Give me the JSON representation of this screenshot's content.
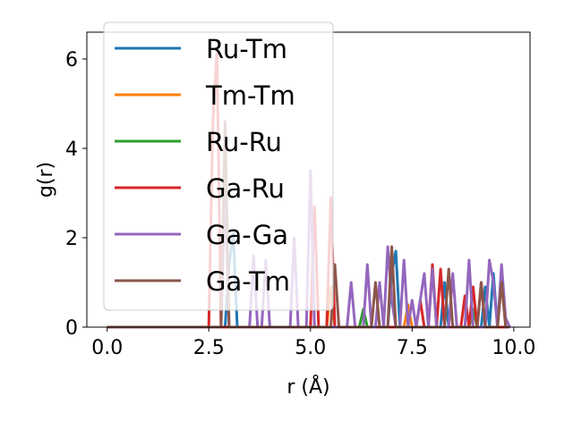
{
  "chart_data": {
    "type": "line",
    "xlabel": "r (Å)",
    "ylabel": "g(r)",
    "xlim": [
      -0.5,
      10.4
    ],
    "ylim": [
      0,
      6.6
    ],
    "xticks": [
      0.0,
      2.5,
      5.0,
      7.5,
      10.0
    ],
    "xtick_labels": [
      "0.0",
      "2.5",
      "5.0",
      "7.5",
      "10.0"
    ],
    "yticks": [
      0,
      2,
      4,
      6
    ],
    "ytick_labels": [
      "0",
      "2",
      "4",
      "6"
    ],
    "grid": false,
    "legend_position": "upper-left",
    "series": [
      {
        "name": "Ru-Tm",
        "color": "#1f77b4",
        "points": [
          [
            0,
            0
          ],
          [
            2.9,
            0
          ],
          [
            3.0,
            1.4
          ],
          [
            3.1,
            2.1
          ],
          [
            3.2,
            0
          ],
          [
            6.9,
            0
          ],
          [
            7.0,
            1.2
          ],
          [
            7.1,
            1.7
          ],
          [
            7.2,
            0
          ],
          [
            8.2,
            0
          ],
          [
            8.3,
            1.0
          ],
          [
            8.4,
            0
          ],
          [
            9.2,
            0
          ],
          [
            9.3,
            0.9
          ],
          [
            9.4,
            0
          ],
          [
            9.5,
            1.2
          ],
          [
            9.6,
            0
          ],
          [
            9.9,
            0
          ]
        ]
      },
      {
        "name": "Tm-Tm",
        "color": "#ff7f0e",
        "points": [
          [
            0,
            0
          ],
          [
            5.4,
            0
          ],
          [
            5.5,
            0.9
          ],
          [
            5.6,
            0
          ],
          [
            7.3,
            0
          ],
          [
            7.4,
            0.5
          ],
          [
            7.5,
            0
          ],
          [
            9.9,
            0
          ]
        ]
      },
      {
        "name": "Ru-Ru",
        "color": "#2ca02c",
        "points": [
          [
            0,
            0
          ],
          [
            6.2,
            0
          ],
          [
            6.3,
            0.4
          ],
          [
            6.4,
            0
          ],
          [
            8.9,
            0
          ],
          [
            9.0,
            0.4
          ],
          [
            9.1,
            0
          ],
          [
            9.9,
            0
          ]
        ]
      },
      {
        "name": "Ga-Ru",
        "color": "#d62728",
        "points": [
          [
            0,
            0
          ],
          [
            2.5,
            0
          ],
          [
            2.6,
            4.6
          ],
          [
            2.7,
            6.2
          ],
          [
            2.8,
            0
          ],
          [
            5.0,
            0
          ],
          [
            5.1,
            2.7
          ],
          [
            5.2,
            0
          ],
          [
            5.4,
            0
          ],
          [
            5.5,
            2.9
          ],
          [
            5.6,
            0
          ],
          [
            7.6,
            0
          ],
          [
            7.7,
            0.6
          ],
          [
            7.8,
            0
          ],
          [
            7.9,
            0
          ],
          [
            8.0,
            1.4
          ],
          [
            8.1,
            0
          ],
          [
            8.2,
            1.3
          ],
          [
            8.3,
            0
          ],
          [
            8.7,
            0
          ],
          [
            8.8,
            0.7
          ],
          [
            8.9,
            0
          ],
          [
            9.0,
            0.9
          ],
          [
            9.1,
            0
          ],
          [
            9.2,
            1.0
          ],
          [
            9.3,
            0
          ],
          [
            9.9,
            0
          ]
        ]
      },
      {
        "name": "Ga-Ga",
        "color": "#9467bd",
        "points": [
          [
            0,
            0
          ],
          [
            2.8,
            0
          ],
          [
            2.9,
            3.1
          ],
          [
            3.0,
            0
          ],
          [
            3.5,
            0
          ],
          [
            3.6,
            1.6
          ],
          [
            3.7,
            0
          ],
          [
            3.8,
            0
          ],
          [
            3.9,
            1.5
          ],
          [
            4.0,
            0
          ],
          [
            4.5,
            0
          ],
          [
            4.6,
            2.0
          ],
          [
            4.7,
            0
          ],
          [
            4.9,
            0
          ],
          [
            5.0,
            3.5
          ],
          [
            5.1,
            0
          ],
          [
            5.9,
            0
          ],
          [
            6.0,
            1.0
          ],
          [
            6.1,
            0
          ],
          [
            6.3,
            0
          ],
          [
            6.4,
            1.4
          ],
          [
            6.5,
            0
          ],
          [
            6.6,
            0
          ],
          [
            6.7,
            1.0
          ],
          [
            6.8,
            0
          ],
          [
            6.9,
            1.8
          ],
          [
            7.0,
            0.6
          ],
          [
            7.1,
            0
          ],
          [
            7.2,
            0
          ],
          [
            7.3,
            1.5
          ],
          [
            7.4,
            0
          ],
          [
            7.5,
            0.6
          ],
          [
            7.6,
            0
          ],
          [
            7.8,
            1.2
          ],
          [
            7.9,
            0
          ],
          [
            8.0,
            1.3
          ],
          [
            8.1,
            0
          ],
          [
            8.4,
            0
          ],
          [
            8.5,
            1.2
          ],
          [
            8.6,
            0
          ],
          [
            8.8,
            0
          ],
          [
            8.9,
            1.5
          ],
          [
            9.0,
            0
          ],
          [
            9.3,
            0
          ],
          [
            9.4,
            1.5
          ],
          [
            9.5,
            1.0
          ],
          [
            9.6,
            0
          ],
          [
            9.7,
            1.4
          ],
          [
            9.8,
            0.2
          ],
          [
            9.9,
            0
          ]
        ]
      },
      {
        "name": "Ga-Tm",
        "color": "#8c564b",
        "points": [
          [
            0,
            0
          ],
          [
            2.8,
            0
          ],
          [
            2.9,
            4.6
          ],
          [
            3.0,
            0
          ],
          [
            5.5,
            0
          ],
          [
            5.6,
            1.4
          ],
          [
            5.7,
            0
          ],
          [
            6.5,
            0
          ],
          [
            6.6,
            1.0
          ],
          [
            6.7,
            0
          ],
          [
            6.9,
            0
          ],
          [
            7.0,
            1.8
          ],
          [
            7.1,
            0
          ],
          [
            8.3,
            0
          ],
          [
            8.4,
            1.3
          ],
          [
            8.5,
            0
          ],
          [
            9.1,
            0
          ],
          [
            9.2,
            1.0
          ],
          [
            9.3,
            0
          ],
          [
            9.6,
            0
          ],
          [
            9.7,
            1.0
          ],
          [
            9.8,
            0
          ],
          [
            9.9,
            0
          ]
        ]
      }
    ]
  }
}
